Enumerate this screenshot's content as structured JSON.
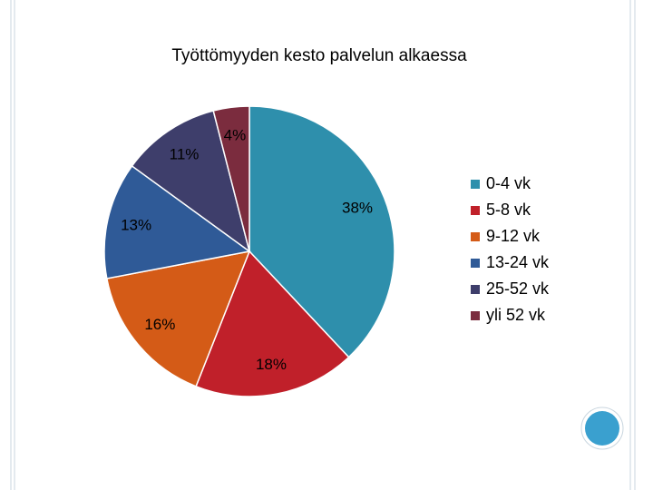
{
  "chart_data": {
    "type": "pie",
    "title": "Työttömyyden kesto palvelun alkaessa",
    "categories": [
      "0-4 vk",
      "5-8 vk",
      "9-12 vk",
      "13-24 vk",
      "25-52 vk",
      "yli 52 vk"
    ],
    "values": [
      38,
      18,
      16,
      13,
      11,
      4
    ],
    "value_labels": [
      "38%",
      "18%",
      "16%",
      "13%",
      "11%",
      "4%"
    ],
    "colors": [
      "#2e8fac",
      "#c0202a",
      "#d45b17",
      "#2f5a97",
      "#3e3e6b",
      "#7b2c3e"
    ],
    "legend": "right"
  }
}
